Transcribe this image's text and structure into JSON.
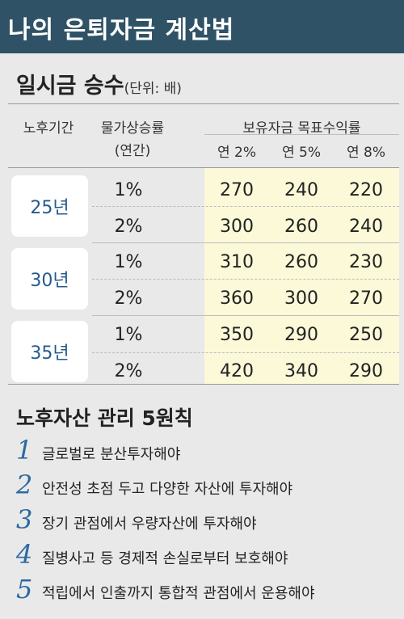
{
  "header": {
    "title": "나의 은퇴자금 계산법"
  },
  "table": {
    "title": "일시금 승수",
    "unit": "(단위: 배)",
    "col_headers": {
      "period": "노후기간",
      "inflation_line1": "물가상승률",
      "inflation_line2": "(연간)",
      "returns_group": "보유자금 목표수익률",
      "returns": [
        "연 2%",
        "연 5%",
        "연 8%"
      ]
    },
    "groups": [
      {
        "period": "25년",
        "rows": [
          {
            "inflation": "1%",
            "values": [
              "270",
              "240",
              "220"
            ]
          },
          {
            "inflation": "2%",
            "values": [
              "300",
              "260",
              "240"
            ]
          }
        ]
      },
      {
        "period": "30년",
        "rows": [
          {
            "inflation": "1%",
            "values": [
              "310",
              "260",
              "230"
            ]
          },
          {
            "inflation": "2%",
            "values": [
              "360",
              "300",
              "270"
            ]
          }
        ]
      },
      {
        "period": "35년",
        "rows": [
          {
            "inflation": "1%",
            "values": [
              "350",
              "290",
              "250"
            ]
          },
          {
            "inflation": "2%",
            "values": [
              "420",
              "340",
              "290"
            ]
          }
        ]
      }
    ]
  },
  "principles": {
    "title": "노후자산 관리 5원칙",
    "items": [
      {
        "num": "1",
        "text": "글로벌로 분산투자해야"
      },
      {
        "num": "2",
        "text": "안전성 초점 두고 다양한 자산에 투자해야"
      },
      {
        "num": "3",
        "text": "장기 관점에서 우량자산에 투자해야"
      },
      {
        "num": "4",
        "text": "질병사고 등 경제적 손실로부터 보호해야"
      },
      {
        "num": "5",
        "text": "적립에서 인출까지 통합적 관점에서 운용해야"
      }
    ]
  }
}
